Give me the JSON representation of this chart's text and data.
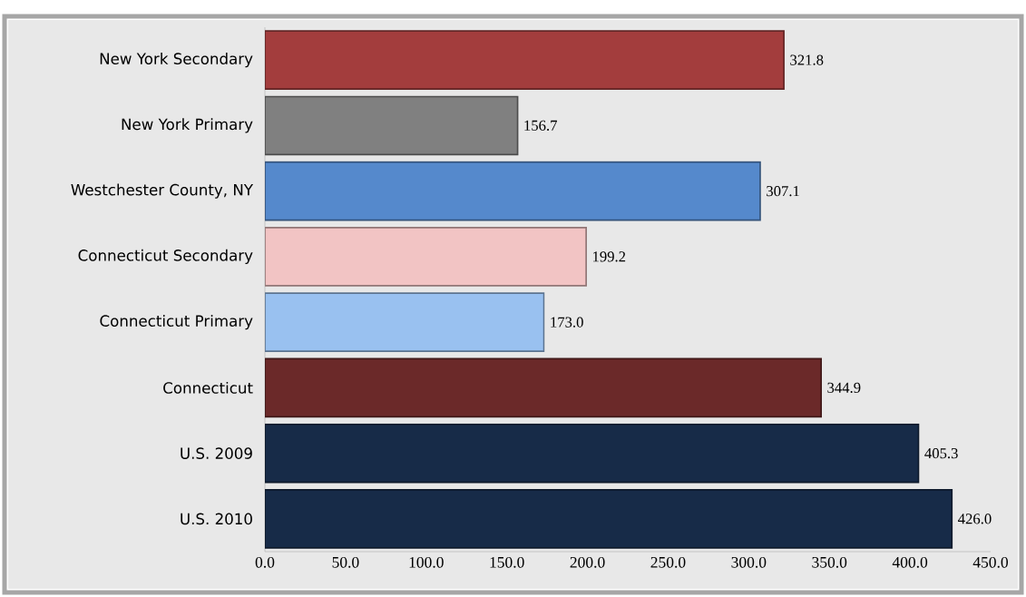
{
  "chart_data": {
    "type": "bar",
    "orientation": "horizontal",
    "categories": [
      "New York Secondary",
      "New York Primary",
      "Westchester County, NY",
      "Connecticut Secondary",
      "Connecticut Primary",
      "Connecticut",
      "U.S. 2009",
      "U.S. 2010"
    ],
    "values": [
      321.8,
      156.7,
      307.1,
      199.2,
      173.0,
      344.9,
      405.3,
      426.0
    ],
    "colors": [
      "#a33d3d",
      "#808080",
      "#5589cc",
      "#f2c4c4",
      "#99c1f0",
      "#6b2929",
      "#172b48",
      "#172b48"
    ],
    "value_labels": [
      "321.8",
      "156.7",
      "307.1",
      "199.2",
      "173.0",
      "344.9",
      "405.3",
      "426.0"
    ],
    "xlim": [
      0,
      450
    ],
    "xticks": [
      {
        "value": 0,
        "label": "0.0"
      },
      {
        "value": 50,
        "label": "50.0"
      },
      {
        "value": 100,
        "label": "100.0"
      },
      {
        "value": 150,
        "label": "150.0"
      },
      {
        "value": 200,
        "label": "200.0"
      },
      {
        "value": 250,
        "label": "250.0"
      },
      {
        "value": 300,
        "label": "300.0"
      },
      {
        "value": 350,
        "label": "350.0"
      },
      {
        "value": 400,
        "label": "400.0"
      },
      {
        "value": 450,
        "label": "450.0"
      }
    ],
    "grid": false
  }
}
